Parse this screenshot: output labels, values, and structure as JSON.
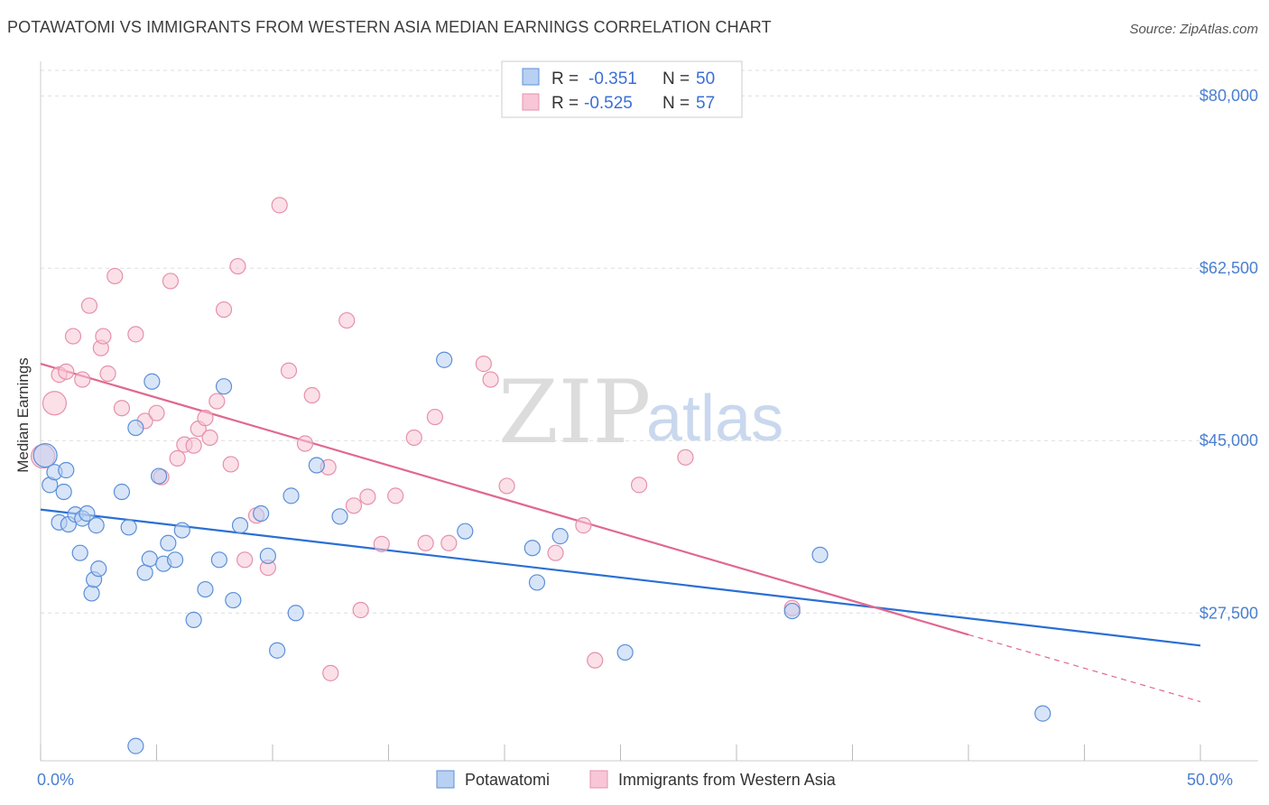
{
  "header": {
    "title": "POTAWATOMI VS IMMIGRANTS FROM WESTERN ASIA MEDIAN EARNINGS CORRELATION CHART",
    "source": "Source: ZipAtlas.com"
  },
  "watermark": {
    "zip": "ZIP",
    "atlas": "atlas"
  },
  "colors": {
    "blue_fill": "#b8d0f2",
    "blue_stroke": "#5b8fd8",
    "blue_line": "#2a6fd4",
    "pink_fill": "#f8c6d6",
    "pink_stroke": "#e690ad",
    "pink_line": "#e06890",
    "grid": "#dddddd",
    "tick_text": "#4a7fd0"
  },
  "stats": [
    {
      "r_label": "R =",
      "r_value": "-0.351",
      "n_label": "N =",
      "n_value": "50"
    },
    {
      "r_label": "R =",
      "r_value": "-0.525",
      "n_label": "N =",
      "n_value": "57"
    }
  ],
  "chart_data": {
    "type": "scatter",
    "title": "POTAWATOMI VS IMMIGRANTS FROM WESTERN ASIA MEDIAN EARNINGS CORRELATION CHART",
    "xlabel": "",
    "ylabel": "Median Earnings",
    "xlim": [
      0,
      50
    ],
    "ylim": [
      12500,
      83500
    ],
    "x_tick_labels": [
      {
        "value": 0,
        "label": "0.0%"
      },
      {
        "value": 50,
        "label": "50.0%"
      }
    ],
    "x_minor_ticks": [
      5,
      10,
      15,
      20,
      25,
      30,
      35,
      40,
      45
    ],
    "y_ticks": [
      {
        "value": 80000,
        "label": "$80,000"
      },
      {
        "value": 62500,
        "label": "$62,500"
      },
      {
        "value": 45000,
        "label": "$45,000"
      },
      {
        "value": 27500,
        "label": "$27,500"
      }
    ],
    "legend_position": "bottom-center",
    "series": [
      {
        "name": "Potawatomi",
        "color": "#5b8fd8",
        "trend": {
          "x": [
            0,
            50
          ],
          "y": [
            38000,
            24200
          ]
        },
        "points": [
          {
            "x": 0.2,
            "y": 43500,
            "size": "large"
          },
          {
            "x": 0.4,
            "y": 40500
          },
          {
            "x": 0.6,
            "y": 41800
          },
          {
            "x": 0.8,
            "y": 36700
          },
          {
            "x": 1.0,
            "y": 39800
          },
          {
            "x": 1.1,
            "y": 42000
          },
          {
            "x": 1.2,
            "y": 36500
          },
          {
            "x": 1.5,
            "y": 37500
          },
          {
            "x": 1.7,
            "y": 33600
          },
          {
            "x": 1.8,
            "y": 37100
          },
          {
            "x": 2.0,
            "y": 37600
          },
          {
            "x": 2.2,
            "y": 29500
          },
          {
            "x": 2.3,
            "y": 30900
          },
          {
            "x": 2.4,
            "y": 36400
          },
          {
            "x": 2.5,
            "y": 32000
          },
          {
            "x": 3.5,
            "y": 39800
          },
          {
            "x": 3.8,
            "y": 36200
          },
          {
            "x": 4.1,
            "y": 46300
          },
          {
            "x": 4.1,
            "y": 14000
          },
          {
            "x": 4.5,
            "y": 31600
          },
          {
            "x": 4.7,
            "y": 33000
          },
          {
            "x": 4.8,
            "y": 51000
          },
          {
            "x": 5.1,
            "y": 41400
          },
          {
            "x": 5.3,
            "y": 32500
          },
          {
            "x": 5.5,
            "y": 34600
          },
          {
            "x": 5.8,
            "y": 32900
          },
          {
            "x": 6.1,
            "y": 35900
          },
          {
            "x": 6.6,
            "y": 26800
          },
          {
            "x": 7.1,
            "y": 29900
          },
          {
            "x": 7.7,
            "y": 32900
          },
          {
            "x": 7.9,
            "y": 50500
          },
          {
            "x": 8.3,
            "y": 28800
          },
          {
            "x": 8.6,
            "y": 36400
          },
          {
            "x": 9.5,
            "y": 37600
          },
          {
            "x": 9.8,
            "y": 33300
          },
          {
            "x": 10.2,
            "y": 23700
          },
          {
            "x": 10.8,
            "y": 39400
          },
          {
            "x": 11.0,
            "y": 27500
          },
          {
            "x": 11.9,
            "y": 42500
          },
          {
            "x": 12.9,
            "y": 37300
          },
          {
            "x": 17.4,
            "y": 53200
          },
          {
            "x": 18.3,
            "y": 35800
          },
          {
            "x": 21.2,
            "y": 34100
          },
          {
            "x": 21.4,
            "y": 30600
          },
          {
            "x": 22.4,
            "y": 35300
          },
          {
            "x": 25.2,
            "y": 23500
          },
          {
            "x": 32.4,
            "y": 27700
          },
          {
            "x": 33.6,
            "y": 33400
          },
          {
            "x": 43.2,
            "y": 17300
          }
        ]
      },
      {
        "name": "Immigrants from Western Asia",
        "color": "#e690ad",
        "trend": {
          "x": [
            0,
            40
          ],
          "y": [
            52800,
            25300
          ]
        },
        "trend_dashed": {
          "x": [
            40,
            50
          ],
          "y": [
            25300,
            18500
          ]
        },
        "points": [
          {
            "x": 0.1,
            "y": 43400,
            "size": "large"
          },
          {
            "x": 0.6,
            "y": 48800,
            "size": "large"
          },
          {
            "x": 0.8,
            "y": 51700
          },
          {
            "x": 1.1,
            "y": 52000
          },
          {
            "x": 1.4,
            "y": 55600
          },
          {
            "x": 1.8,
            "y": 51200
          },
          {
            "x": 2.1,
            "y": 58700
          },
          {
            "x": 2.6,
            "y": 54400
          },
          {
            "x": 2.7,
            "y": 55600
          },
          {
            "x": 2.9,
            "y": 51800
          },
          {
            "x": 3.2,
            "y": 61700
          },
          {
            "x": 3.5,
            "y": 48300
          },
          {
            "x": 4.1,
            "y": 55800
          },
          {
            "x": 4.5,
            "y": 47000
          },
          {
            "x": 5.0,
            "y": 47800
          },
          {
            "x": 5.2,
            "y": 41300
          },
          {
            "x": 5.6,
            "y": 61200
          },
          {
            "x": 5.9,
            "y": 43200
          },
          {
            "x": 6.2,
            "y": 44600
          },
          {
            "x": 6.6,
            "y": 44500
          },
          {
            "x": 6.8,
            "y": 46200
          },
          {
            "x": 7.1,
            "y": 47300
          },
          {
            "x": 7.3,
            "y": 45300
          },
          {
            "x": 7.6,
            "y": 49000
          },
          {
            "x": 7.9,
            "y": 58300
          },
          {
            "x": 8.2,
            "y": 42600
          },
          {
            "x": 8.5,
            "y": 62700
          },
          {
            "x": 8.8,
            "y": 32900
          },
          {
            "x": 9.3,
            "y": 37400
          },
          {
            "x": 9.8,
            "y": 32100
          },
          {
            "x": 10.3,
            "y": 68900
          },
          {
            "x": 10.7,
            "y": 52100
          },
          {
            "x": 11.4,
            "y": 44700
          },
          {
            "x": 11.7,
            "y": 49600
          },
          {
            "x": 12.4,
            "y": 42300
          },
          {
            "x": 12.5,
            "y": 21400
          },
          {
            "x": 13.2,
            "y": 57200
          },
          {
            "x": 13.5,
            "y": 38400
          },
          {
            "x": 13.8,
            "y": 27800
          },
          {
            "x": 14.1,
            "y": 39300
          },
          {
            "x": 14.7,
            "y": 34500
          },
          {
            "x": 15.3,
            "y": 39400
          },
          {
            "x": 16.1,
            "y": 45300
          },
          {
            "x": 16.6,
            "y": 34600
          },
          {
            "x": 17.0,
            "y": 47400
          },
          {
            "x": 17.6,
            "y": 34600
          },
          {
            "x": 19.1,
            "y": 52800
          },
          {
            "x": 19.4,
            "y": 51200
          },
          {
            "x": 20.1,
            "y": 40400
          },
          {
            "x": 22.2,
            "y": 33600
          },
          {
            "x": 23.4,
            "y": 36400
          },
          {
            "x": 23.9,
            "y": 22700
          },
          {
            "x": 25.8,
            "y": 40500
          },
          {
            "x": 27.8,
            "y": 43300
          },
          {
            "x": 32.4,
            "y": 28000
          }
        ]
      }
    ]
  }
}
